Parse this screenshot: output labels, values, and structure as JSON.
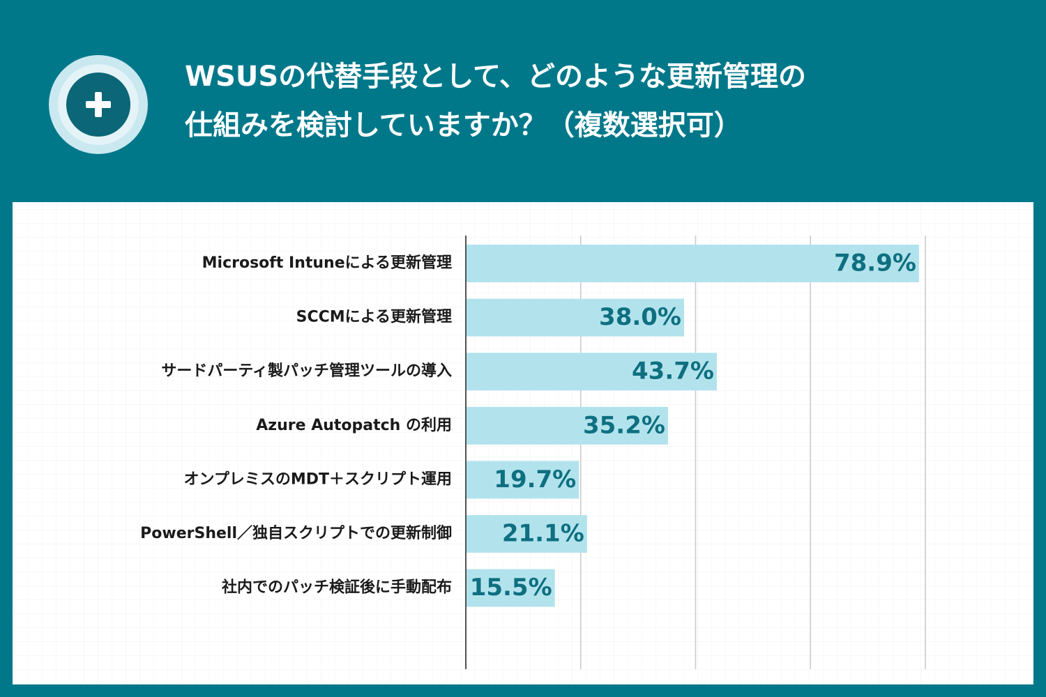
{
  "chart_data": {
    "type": "bar",
    "orientation": "horizontal",
    "title": [
      "WSUSの代替手段として、どのような更新管理の",
      "仕組みを検討していますか？（複数選択可）"
    ],
    "categories": [
      "Microsoft Intuneによる更新管理",
      "SCCMによる更新管理",
      "サードパーティ製パッチ管理ツールの導入",
      "Azure Autopatch の利用",
      "オンプレミスのMDT＋スクリプト運用",
      "PowerShell／独自スクリプトでの更新制御",
      "社内でのパッチ検証後に手動配布"
    ],
    "values": [
      78.9,
      38.0,
      43.7,
      35.2,
      19.7,
      21.1,
      15.5
    ],
    "value_labels": [
      "78.9%",
      "38.0%",
      "43.7%",
      "35.2%",
      "19.7%",
      "21.1%",
      "15.5%"
    ],
    "color": "#b2e3ed",
    "xlim": [
      0,
      80
    ],
    "xticks": [
      0,
      20,
      40,
      60,
      80
    ],
    "grid": true
  }
}
